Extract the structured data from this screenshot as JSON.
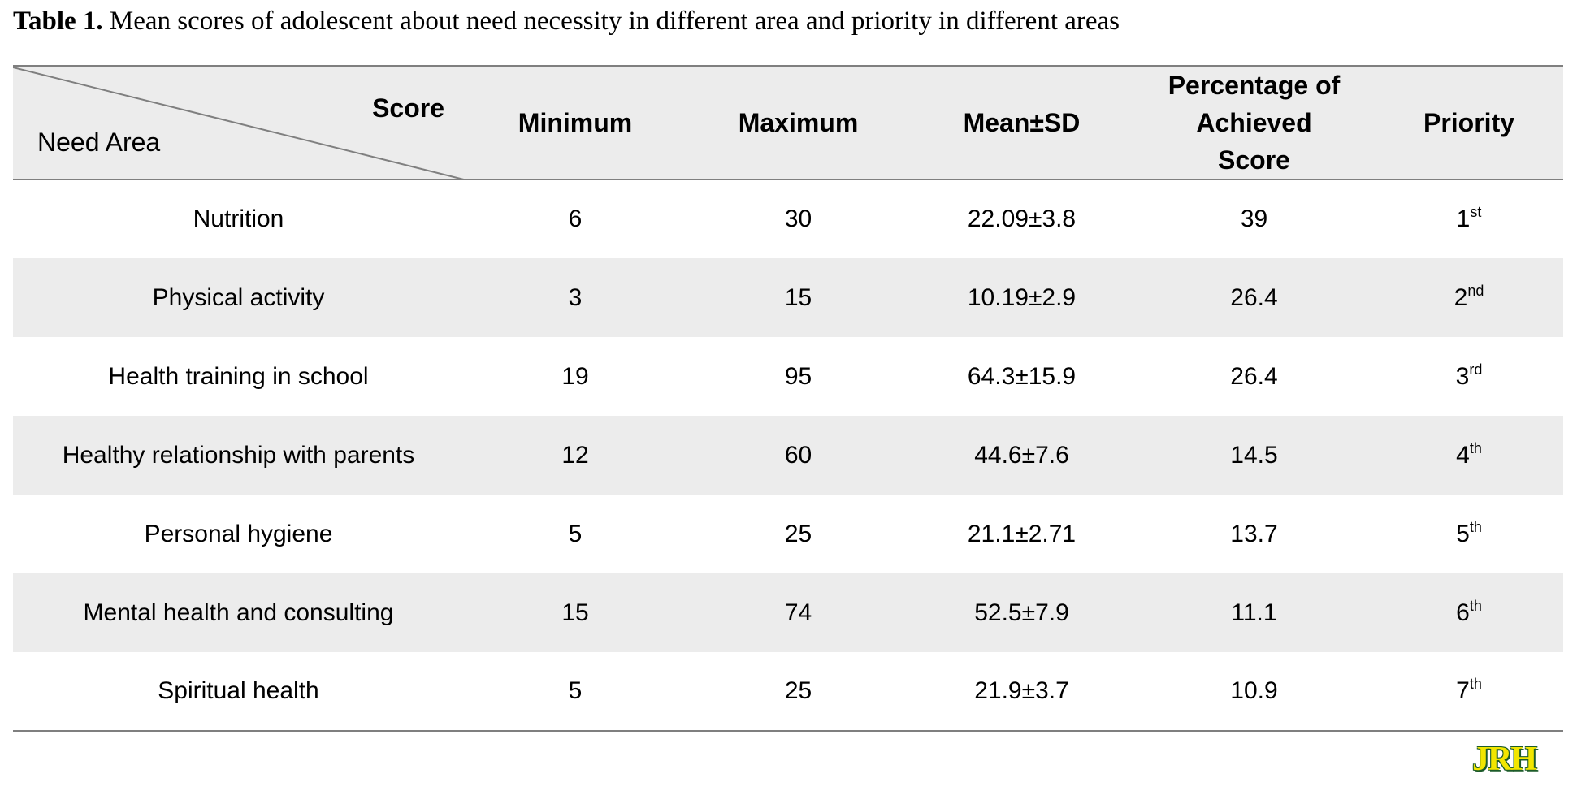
{
  "caption": {
    "label": "Table 1.",
    "text": " Mean scores of adolescent about need necessity in different area and priority in different areas"
  },
  "table": {
    "header": {
      "corner_top": "Score",
      "corner_bottom": "Need Area",
      "columns": [
        "Minimum",
        "Maximum",
        "Mean±SD",
        "Percentage of Achieved Score",
        "Priority"
      ]
    },
    "rows": [
      {
        "area": "Nutrition",
        "min": "6",
        "max": "30",
        "mean_sd": "22.09±3.8",
        "percentage": "39",
        "priority_num": "1",
        "priority_suffix": "st"
      },
      {
        "area": "Physical activity",
        "min": "3",
        "max": "15",
        "mean_sd": "10.19±2.9",
        "percentage": "26.4",
        "priority_num": "2",
        "priority_suffix": "nd"
      },
      {
        "area": "Health training in school",
        "min": "19",
        "max": "95",
        "mean_sd": "64.3±15.9",
        "percentage": "26.4",
        "priority_num": "3",
        "priority_suffix": "rd"
      },
      {
        "area": "Healthy relationship with parents",
        "min": "12",
        "max": "60",
        "mean_sd": "44.6±7.6",
        "percentage": "14.5",
        "priority_num": "4",
        "priority_suffix": "th"
      },
      {
        "area": "Personal hygiene",
        "min": "5",
        "max": "25",
        "mean_sd": "21.1±2.71",
        "percentage": "13.7",
        "priority_num": "5",
        "priority_suffix": "th"
      },
      {
        "area": "Mental health and consulting",
        "min": "15",
        "max": "74",
        "mean_sd": "52.5±7.9",
        "percentage": "11.1",
        "priority_num": "6",
        "priority_suffix": "th"
      },
      {
        "area": "Spiritual health",
        "min": "5",
        "max": "25",
        "mean_sd": "21.9±3.7",
        "percentage": "10.9",
        "priority_num": "7",
        "priority_suffix": "th"
      }
    ]
  },
  "logo": {
    "text": "JRH",
    "colors": {
      "fill": "#f2e600",
      "outline": "#1c5b2a"
    }
  }
}
